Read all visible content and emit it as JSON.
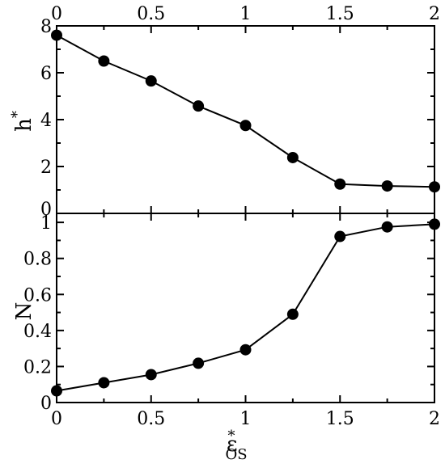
{
  "chart_data": [
    {
      "type": "line",
      "panel": "top",
      "ylabel": "h",
      "ylabel_superscript": "*",
      "x": [
        0,
        0.25,
        0.5,
        0.75,
        1.0,
        1.25,
        1.5,
        1.75,
        2.0
      ],
      "series": [
        {
          "values": [
            7.6,
            6.5,
            5.65,
            4.58,
            3.75,
            2.38,
            1.25,
            1.17,
            1.13
          ]
        }
      ],
      "xlim": [
        0,
        2
      ],
      "ylim": [
        0,
        8
      ],
      "xticks": [
        "0",
        "0.5",
        "1",
        "1.5",
        "2"
      ],
      "yticks": [
        "0",
        "2",
        "4",
        "6",
        "8"
      ],
      "xticks_position": "top",
      "grid": false,
      "marker": "filled-circle"
    },
    {
      "type": "line",
      "panel": "bottom",
      "ylabel": "N",
      "xlabel": "ε",
      "xlabel_superscript": "*",
      "xlabel_subscript": "OS",
      "x": [
        0,
        0.25,
        0.5,
        0.75,
        1.0,
        1.25,
        1.5,
        1.75,
        2.0
      ],
      "series": [
        {
          "values": [
            0.065,
            0.11,
            0.155,
            0.218,
            0.293,
            0.49,
            0.922,
            0.975,
            0.99
          ]
        }
      ],
      "xlim": [
        0,
        2
      ],
      "ylim": [
        0,
        1.05
      ],
      "xticks": [
        "0",
        "0.5",
        "1",
        "1.5",
        "2"
      ],
      "yticks": [
        "0",
        "0.2",
        "0.4",
        "0.6",
        "0.8",
        "1"
      ],
      "grid": false,
      "marker": "filled-circle"
    }
  ]
}
